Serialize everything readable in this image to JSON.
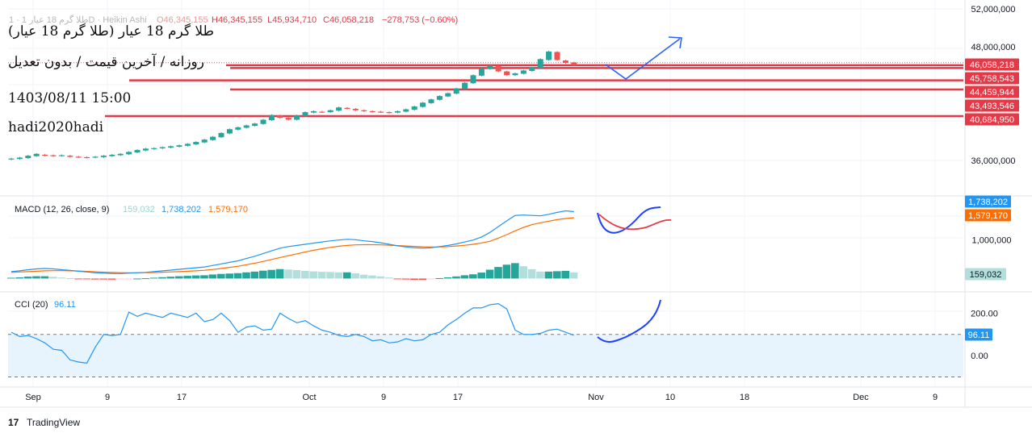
{
  "header": {
    "symbol_line": "طلا گرم 18 عیار 1 · 1D · Heikin Ashi",
    "ohlc": {
      "o": "O46,345,155",
      "h": "H46,345,155",
      "l": "L45,934,710",
      "c": "C46,058,218",
      "change": "−278,753 (−0.60%)"
    }
  },
  "notes": {
    "title": "طلا گرم 18 عیار (طلا گرم 18 عیار)",
    "subtitle": "روزانه / آخرین قیمت / بدون تعدیل",
    "datetime": "1403/08/11 15:00",
    "author": "hadi2020hadi"
  },
  "colors": {
    "up": "#26a69a",
    "down": "#ef5350",
    "levels": "#e53947",
    "macd_line": "#2196f3",
    "signal_line": "#ff6d00",
    "cci_line": "#2196f3",
    "drawing": "#2962ff"
  },
  "chart_data": [
    {
      "type": "candlestick",
      "title": "",
      "price_axis_labels": [
        "52,000,000",
        "48,000,000",
        "36,000,000"
      ],
      "ylim": [
        34500000,
        52000000
      ],
      "levels": [
        {
          "value": "46,058,218",
          "price": 46058218
        },
        {
          "value": "45,758,543",
          "price": 45758543
        },
        {
          "value": "44,459,944",
          "price": 44459944
        },
        {
          "value": "43,493,546",
          "price": 43493546
        },
        {
          "value": "40,684,950",
          "price": 40684950
        }
      ],
      "candles": [
        {
          "o": 36100000,
          "c": 36200000
        },
        {
          "o": 36150000,
          "c": 36300000
        },
        {
          "o": 36250000,
          "c": 36500000
        },
        {
          "o": 36450000,
          "c": 36700000
        },
        {
          "o": 36600000,
          "c": 36500000
        },
        {
          "o": 36550000,
          "c": 36450000
        },
        {
          "o": 36480000,
          "c": 36550000
        },
        {
          "o": 36500000,
          "c": 36380000
        },
        {
          "o": 36400000,
          "c": 36330000
        },
        {
          "o": 36350000,
          "c": 36300000
        },
        {
          "o": 36300000,
          "c": 36400000
        },
        {
          "o": 36350000,
          "c": 36500000
        },
        {
          "o": 36450000,
          "c": 36600000
        },
        {
          "o": 36550000,
          "c": 36700000
        },
        {
          "o": 36650000,
          "c": 36900000
        },
        {
          "o": 36850000,
          "c": 37100000
        },
        {
          "o": 37050000,
          "c": 37250000
        },
        {
          "o": 37200000,
          "c": 37300000
        },
        {
          "o": 37280000,
          "c": 37400000
        },
        {
          "o": 37350000,
          "c": 37500000
        },
        {
          "o": 37450000,
          "c": 37600000
        },
        {
          "o": 37550000,
          "c": 37750000
        },
        {
          "o": 37700000,
          "c": 37950000
        },
        {
          "o": 37900000,
          "c": 38200000
        },
        {
          "o": 38150000,
          "c": 38500000
        },
        {
          "o": 38450000,
          "c": 38900000
        },
        {
          "o": 38850000,
          "c": 39300000
        },
        {
          "o": 39250000,
          "c": 39500000
        },
        {
          "o": 39450000,
          "c": 39700000
        },
        {
          "o": 39650000,
          "c": 39900000
        },
        {
          "o": 39850000,
          "c": 40300000
        },
        {
          "o": 40250000,
          "c": 40800000
        },
        {
          "o": 40750000,
          "c": 40500000
        },
        {
          "o": 40500000,
          "c": 40300000
        },
        {
          "o": 40300000,
          "c": 40750000
        },
        {
          "o": 40700000,
          "c": 41100000
        },
        {
          "o": 41050000,
          "c": 41200000
        },
        {
          "o": 41150000,
          "c": 41100000
        },
        {
          "o": 41100000,
          "c": 41300000
        },
        {
          "o": 41250000,
          "c": 41600000
        },
        {
          "o": 41550000,
          "c": 41450000
        },
        {
          "o": 41450000,
          "c": 41300000
        },
        {
          "o": 41300000,
          "c": 41200000
        },
        {
          "o": 41200000,
          "c": 41150000
        },
        {
          "o": 41150000,
          "c": 41100000
        },
        {
          "o": 41100000,
          "c": 41050000
        },
        {
          "o": 41050000,
          "c": 41200000
        },
        {
          "o": 41150000,
          "c": 41400000
        },
        {
          "o": 41350000,
          "c": 41700000
        },
        {
          "o": 41650000,
          "c": 42100000
        },
        {
          "o": 42050000,
          "c": 42450000
        },
        {
          "o": 42400000,
          "c": 42800000
        },
        {
          "o": 42750000,
          "c": 43100000
        },
        {
          "o": 43050000,
          "c": 43600000
        },
        {
          "o": 43550000,
          "c": 44200000
        },
        {
          "o": 44150000,
          "c": 45000000
        },
        {
          "o": 44950000,
          "c": 45700000
        },
        {
          "o": 45650000,
          "c": 46000000
        },
        {
          "o": 45950000,
          "c": 45400000
        },
        {
          "o": 45400000,
          "c": 45000000
        },
        {
          "o": 45000000,
          "c": 45200000
        },
        {
          "o": 45150000,
          "c": 45500000
        },
        {
          "o": 45450000,
          "c": 45800000
        },
        {
          "o": 45750000,
          "c": 46700000
        },
        {
          "o": 46600000,
          "c": 47500000
        },
        {
          "o": 47450000,
          "c": 46600000
        },
        {
          "o": 46550000,
          "c": 46300000
        },
        {
          "o": 46345155,
          "c": 46058218
        }
      ]
    },
    {
      "type": "line",
      "title": "MACD (12, 26, close, 9)",
      "legend_values": {
        "histogram": "159,032",
        "macd": "1,738,202",
        "signal": "1,579,170"
      },
      "axis_labels": [
        "1,000,000"
      ],
      "badges": [
        "1,738,202",
        "1,579,170",
        "159,032"
      ],
      "macd": [
        180000,
        200000,
        230000,
        250000,
        260000,
        250000,
        230000,
        210000,
        190000,
        170000,
        150000,
        140000,
        130000,
        130000,
        140000,
        150000,
        160000,
        180000,
        200000,
        220000,
        240000,
        260000,
        280000,
        300000,
        340000,
        380000,
        420000,
        460000,
        520000,
        580000,
        650000,
        720000,
        790000,
        830000,
        860000,
        890000,
        920000,
        950000,
        980000,
        1000000,
        1020000,
        1010000,
        980000,
        960000,
        930000,
        890000,
        850000,
        820000,
        800000,
        790000,
        800000,
        830000,
        860000,
        900000,
        950000,
        1000000,
        1080000,
        1200000,
        1350000,
        1500000,
        1640000,
        1650000,
        1640000,
        1630000,
        1670000,
        1720000,
        1760000,
        1738202
      ],
      "signal": [
        160000,
        170000,
        180000,
        190000,
        200000,
        205000,
        205000,
        200000,
        195000,
        185000,
        175000,
        165000,
        158000,
        152000,
        150000,
        150000,
        152000,
        158000,
        165000,
        172000,
        180000,
        190000,
        200000,
        215000,
        235000,
        260000,
        290000,
        320000,
        360000,
        400000,
        445000,
        495000,
        545000,
        595000,
        640000,
        690000,
        735000,
        775000,
        810000,
        840000,
        860000,
        875000,
        880000,
        880000,
        875000,
        865000,
        855000,
        845000,
        835000,
        825000,
        820000,
        820000,
        830000,
        845000,
        865000,
        890000,
        925000,
        970000,
        1050000,
        1140000,
        1240000,
        1330000,
        1400000,
        1450000,
        1490000,
        1530000,
        1560000,
        1579170
      ],
      "histogram": [
        20000,
        30000,
        50000,
        60000,
        60000,
        45000,
        25000,
        10000,
        -5000,
        -15000,
        -25000,
        -25000,
        -28000,
        -22000,
        -10000,
        0,
        8000,
        22000,
        35000,
        48000,
        60000,
        70000,
        80000,
        85000,
        105000,
        120000,
        130000,
        140000,
        160000,
        180000,
        205000,
        225000,
        245000,
        235000,
        220000,
        200000,
        185000,
        175000,
        170000,
        160000,
        160000,
        135000,
        100000,
        80000,
        55000,
        25000,
        -5000,
        -25000,
        -35000,
        -35000,
        -20000,
        10000,
        30000,
        55000,
        85000,
        110000,
        155000,
        230000,
        300000,
        360000,
        400000,
        320000,
        240000,
        180000,
        180000,
        190000,
        200000,
        159032
      ]
    },
    {
      "type": "line",
      "title": "CCI (20)",
      "legend_values": {
        "cci": "96.11"
      },
      "axis_labels": [
        "200.00",
        "0.00"
      ],
      "badges": [
        "96.11"
      ],
      "reference_lines": [
        100,
        -100
      ],
      "ylim": [
        -140,
        270
      ],
      "cci": [
        110,
        90,
        95,
        80,
        60,
        30,
        25,
        -20,
        -30,
        -35,
        40,
        100,
        95,
        100,
        205,
        185,
        200,
        190,
        180,
        200,
        190,
        180,
        200,
        160,
        170,
        200,
        165,
        110,
        135,
        140,
        120,
        125,
        200,
        175,
        155,
        165,
        140,
        120,
        110,
        95,
        90,
        100,
        90,
        70,
        75,
        60,
        65,
        80,
        70,
        75,
        100,
        110,
        145,
        170,
        200,
        225,
        225,
        240,
        245,
        220,
        120,
        100,
        100,
        105,
        120,
        125,
        110,
        96.11
      ]
    }
  ],
  "time_axis": [
    "Sep",
    "9",
    "17",
    "Oct",
    "9",
    "17",
    "Nov",
    "10",
    "18",
    "Dec",
    "9"
  ],
  "footer": {
    "brand": "TradingView"
  }
}
